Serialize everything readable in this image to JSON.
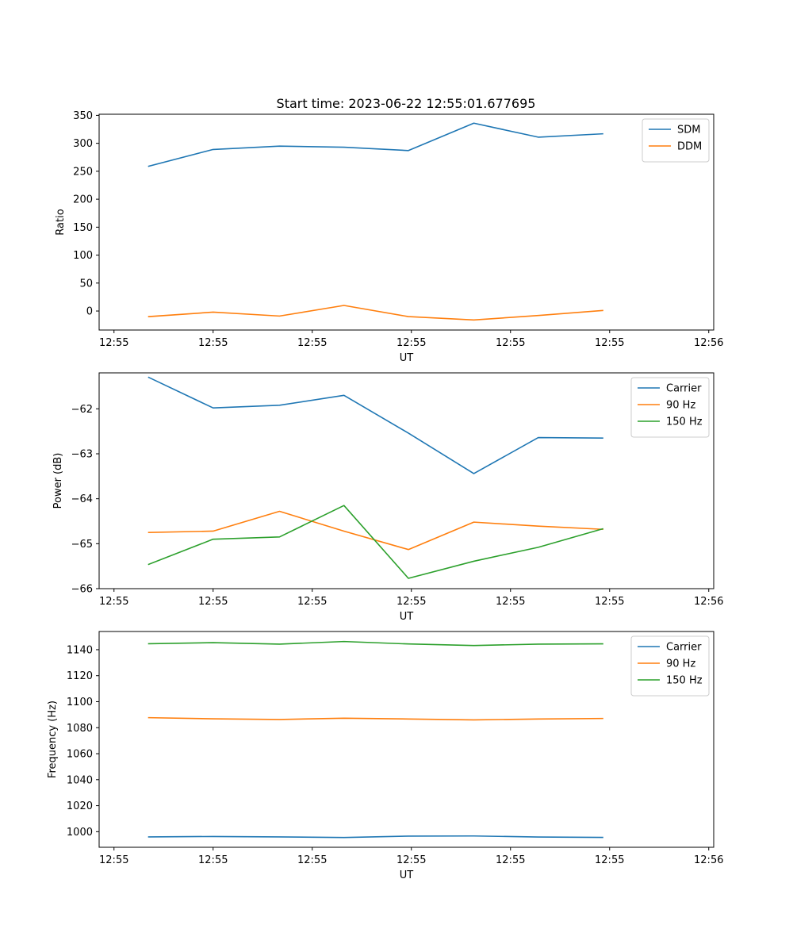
{
  "title": "Start time: 2023-06-22 12:55:01.677695",
  "colors": {
    "c0": "#1f77b4",
    "c1": "#ff7f0e",
    "c2": "#2ca02c"
  },
  "chart_data": [
    {
      "type": "line",
      "xlabel": "UT",
      "ylabel": "Ratio",
      "xtick_labels": [
        "12:55",
        "12:55",
        "12:55",
        "12:55",
        "12:55",
        "12:55",
        "12:56"
      ],
      "xlim": [
        0,
        6.2
      ],
      "x": [
        0.5,
        1.15,
        1.82,
        2.47,
        3.12,
        3.78,
        4.43,
        5.08
      ],
      "ylim": [
        -34,
        352
      ],
      "yticks": [
        0,
        50,
        100,
        150,
        200,
        250,
        300,
        350
      ],
      "legend_position": "top-right",
      "grid": false,
      "series": [
        {
          "name": "SDM",
          "color": "#1f77b4",
          "values": [
            259,
            289,
            295,
            293,
            287,
            336,
            311,
            317
          ]
        },
        {
          "name": "DDM",
          "color": "#ff7f0e",
          "values": [
            -10,
            -2,
            -9,
            10,
            -10,
            -16,
            -8,
            1
          ]
        }
      ]
    },
    {
      "type": "line",
      "xlabel": "UT",
      "ylabel": "Power (dB)",
      "xtick_labels": [
        "12:55",
        "12:55",
        "12:55",
        "12:55",
        "12:55",
        "12:55",
        "12:56"
      ],
      "xlim": [
        0,
        6.2
      ],
      "x": [
        0.5,
        1.15,
        1.82,
        2.47,
        3.12,
        3.78,
        4.43,
        5.08
      ],
      "ylim": [
        -66,
        -61.2
      ],
      "yticks": [
        -66,
        -65,
        -64,
        -63,
        -62
      ],
      "legend_position": "top-right",
      "grid": false,
      "series": [
        {
          "name": "Carrier",
          "color": "#1f77b4",
          "values": [
            -61.3,
            -61.98,
            -61.92,
            -61.7,
            -62.54,
            -63.44,
            -62.64,
            -62.65
          ]
        },
        {
          "name": "90 Hz",
          "color": "#ff7f0e",
          "values": [
            -64.75,
            -64.72,
            -64.28,
            -64.72,
            -65.13,
            -64.52,
            -64.61,
            -64.68
          ]
        },
        {
          "name": "150 Hz",
          "color": "#2ca02c",
          "values": [
            -65.46,
            -64.9,
            -64.85,
            -64.15,
            -65.77,
            -65.39,
            -65.08,
            -64.67
          ]
        }
      ]
    },
    {
      "type": "line",
      "xlabel": "UT",
      "ylabel": "Frequency (Hz)",
      "xtick_labels": [
        "12:55",
        "12:55",
        "12:55",
        "12:55",
        "12:55",
        "12:55",
        "12:56"
      ],
      "xlim": [
        0,
        6.2
      ],
      "x": [
        0.5,
        1.15,
        1.82,
        2.47,
        3.12,
        3.78,
        4.43,
        5.08
      ],
      "ylim": [
        988,
        1154
      ],
      "yticks": [
        1000,
        1020,
        1040,
        1060,
        1080,
        1100,
        1120,
        1140
      ],
      "legend_position": "top-right",
      "grid": false,
      "series": [
        {
          "name": "Carrier",
          "color": "#1f77b4",
          "values": [
            996,
            996.3,
            996,
            995.5,
            996.6,
            996.7,
            995.9,
            995.6
          ]
        },
        {
          "name": "90 Hz",
          "color": "#ff7f0e",
          "values": [
            1087.7,
            1086.8,
            1086.3,
            1087.3,
            1086.7,
            1086.0,
            1086.7,
            1087.1
          ]
        },
        {
          "name": "150 Hz",
          "color": "#2ca02c",
          "values": [
            1144.6,
            1145.4,
            1144.3,
            1146.3,
            1144.4,
            1143.2,
            1144.3,
            1144.5
          ]
        }
      ]
    }
  ]
}
